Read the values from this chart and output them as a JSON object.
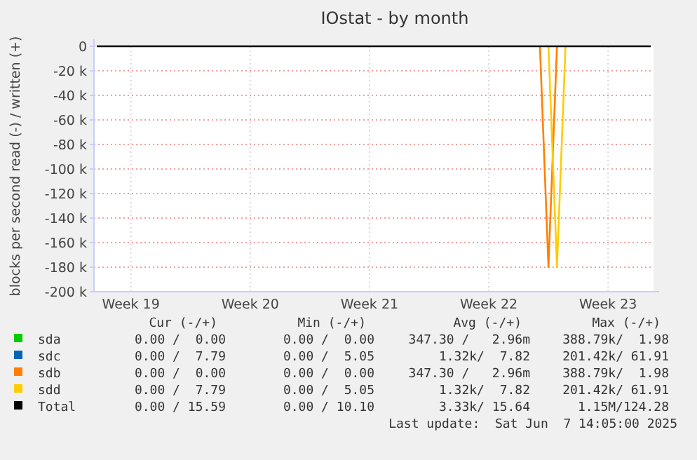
{
  "chart_data": {
    "type": "line",
    "title": "IOstat - by month",
    "ylabel": "blocks per second read (-) / written (+)",
    "categories": [
      null,
      null,
      null,
      null,
      "Week 19",
      null,
      null,
      null,
      null,
      null,
      null,
      null,
      null,
      null,
      null,
      null,
      null,
      null,
      "Week 20",
      null,
      null,
      null,
      null,
      null,
      null,
      null,
      null,
      null,
      null,
      null,
      null,
      null,
      "Week 21",
      null,
      null,
      null,
      null,
      null,
      null,
      null,
      null,
      null,
      null,
      null,
      null,
      null,
      "Week 22",
      null,
      null,
      null,
      null,
      null,
      null,
      null,
      null,
      null,
      null,
      null,
      null,
      null,
      "Week 23",
      null,
      null,
      null,
      null,
      null
    ],
    "ylim": [
      -200000,
      0
    ],
    "yticks": [
      {
        "value": 0,
        "label": "0"
      },
      {
        "value": -20000,
        "label": "-20 k"
      },
      {
        "value": -40000,
        "label": "-40 k"
      },
      {
        "value": -60000,
        "label": "-60 k"
      },
      {
        "value": -80000,
        "label": "-80 k"
      },
      {
        "value": -100000,
        "label": "-100 k"
      },
      {
        "value": -120000,
        "label": "-120 k"
      },
      {
        "value": -140000,
        "label": "-140 k"
      },
      {
        "value": -160000,
        "label": "-160 k"
      },
      {
        "value": -180000,
        "label": "-180 k"
      },
      {
        "value": -200000,
        "label": "-200 k"
      }
    ],
    "grid": true,
    "legend": "bottom",
    "series": [
      {
        "name": "sda",
        "color": "#00cc00",
        "values": [
          null,
          null,
          null,
          null,
          null,
          null,
          null,
          null,
          null,
          null,
          null,
          null,
          null,
          null,
          null,
          null,
          null,
          null,
          null,
          null,
          null,
          null,
          null,
          null,
          null,
          null,
          null,
          null,
          null,
          null,
          null,
          null,
          null,
          null,
          null,
          null,
          null,
          null,
          null,
          null,
          null,
          null,
          null,
          null,
          null,
          null,
          null,
          null,
          null,
          null,
          null,
          null,
          null,
          null,
          null,
          null,
          null,
          null,
          null,
          null,
          null,
          null,
          null,
          null,
          null,
          null
        ]
      },
      {
        "name": "sdc",
        "color": "#0066b3",
        "values": [
          null,
          null,
          null,
          null,
          null,
          null,
          null,
          null,
          null,
          null,
          null,
          null,
          null,
          null,
          null,
          null,
          null,
          null,
          null,
          null,
          null,
          null,
          null,
          null,
          null,
          null,
          null,
          null,
          null,
          null,
          null,
          null,
          null,
          null,
          null,
          null,
          null,
          null,
          null,
          null,
          null,
          null,
          null,
          null,
          null,
          null,
          null,
          null,
          null,
          null,
          null,
          null,
          null,
          null,
          null,
          null,
          null,
          null,
          null,
          null,
          null,
          null,
          null,
          null,
          null,
          null
        ]
      },
      {
        "name": "sdb",
        "color": "#ff8000",
        "values": [
          null,
          null,
          null,
          null,
          null,
          null,
          null,
          null,
          null,
          null,
          null,
          null,
          null,
          null,
          null,
          null,
          null,
          null,
          null,
          null,
          null,
          null,
          null,
          null,
          null,
          null,
          null,
          null,
          null,
          null,
          null,
          null,
          null,
          null,
          null,
          null,
          null,
          null,
          null,
          null,
          null,
          null,
          null,
          null,
          null,
          null,
          null,
          null,
          null,
          null,
          null,
          null,
          0,
          -180000,
          0,
          null,
          null,
          null,
          null,
          null,
          null,
          null,
          null,
          null,
          null,
          null
        ]
      },
      {
        "name": "sdd",
        "color": "#ffcc00",
        "values": [
          null,
          null,
          null,
          null,
          null,
          null,
          null,
          null,
          null,
          null,
          null,
          null,
          null,
          null,
          null,
          null,
          null,
          null,
          null,
          null,
          null,
          null,
          null,
          null,
          null,
          null,
          null,
          null,
          null,
          null,
          null,
          null,
          null,
          null,
          null,
          null,
          null,
          null,
          null,
          null,
          null,
          null,
          null,
          null,
          null,
          null,
          null,
          null,
          null,
          null,
          null,
          null,
          null,
          0,
          -180000,
          0,
          null,
          null,
          null,
          null,
          null,
          null,
          null,
          null,
          null,
          null
        ]
      },
      {
        "name": "Total",
        "color": "#000000",
        "values": [
          0,
          0,
          0,
          0,
          0,
          0,
          0,
          0,
          0,
          0,
          0,
          0,
          0,
          0,
          0,
          0,
          0,
          0,
          0,
          0,
          0,
          0,
          0,
          0,
          0,
          0,
          0,
          0,
          0,
          0,
          0,
          0,
          0,
          0,
          0,
          0,
          0,
          0,
          0,
          0,
          0,
          0,
          0,
          0,
          0,
          0,
          0,
          0,
          0,
          0,
          0,
          0,
          0,
          0,
          0,
          0,
          0,
          0,
          0,
          0,
          0,
          0,
          0,
          0,
          0,
          0
        ]
      }
    ],
    "annotations": [
      "Cur (-/+)",
      "Min (-/+)",
      "Avg (-/+)",
      "Max (-/+)",
      "0.00 /  0.00",
      "0.00 /  0.00",
      "347.30 /   2.96m",
      "388.79k/  1.98",
      "0.00 /  7.79",
      "0.00 /  5.05",
      "1.32k/  7.82",
      "201.42k/ 61.91",
      "0.00 /  0.00",
      "0.00 /  0.00",
      "347.30 /   2.96m",
      "388.79k/  1.98",
      "0.00 /  7.79",
      "0.00 /  5.05",
      "1.32k/  7.82",
      "201.42k/ 61.91",
      "0.00 / 15.59",
      "0.00 / 10.10",
      "3.33k/ 15.64",
      "1.15M/124.28",
      "Last update:  Sat Jun  7 14:05:00 2025"
    ]
  }
}
